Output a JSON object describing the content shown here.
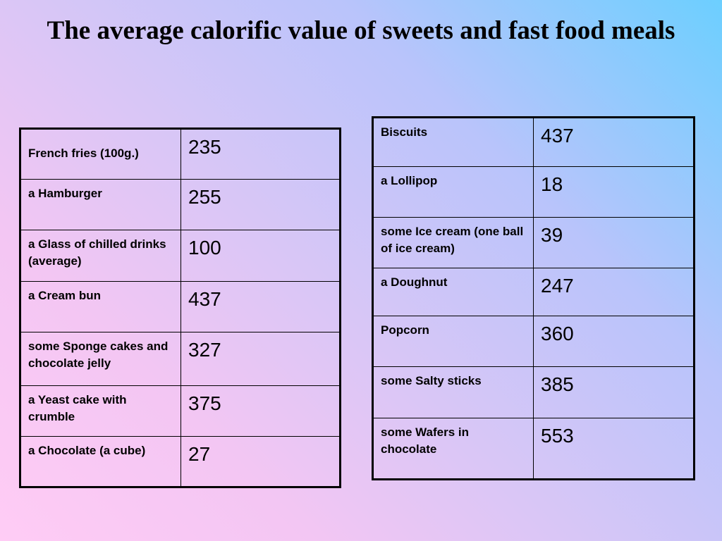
{
  "slide": {
    "title": "The average calorific value of sweets and fast food meals"
  },
  "left_table": {
    "rows": [
      {
        "food": "French fries (100g.)",
        "value": "235"
      },
      {
        "food": "a Hamburger",
        "value": "255"
      },
      {
        "food": "a Glass of chilled drinks (average)",
        "value": "100"
      },
      {
        "food": "a Cream bun",
        "value": "437"
      },
      {
        "food": "some Sponge cakes and chocolate jelly",
        "value": "327"
      },
      {
        "food": "a Yeast cake with crumble",
        "value": "375"
      },
      {
        "food": "a Chocolate (a cube)",
        "value": "27"
      }
    ]
  },
  "right_table": {
    "rows": [
      {
        "food": "Biscuits",
        "value": "437"
      },
      {
        "food": "a Lollipop",
        "value": "18"
      },
      {
        "food": "some Ice cream (one ball of ice cream)",
        "value": "39"
      },
      {
        "food": "a Doughnut",
        "value": "247"
      },
      {
        "food": "Popcorn",
        "value": "360"
      },
      {
        "food": "some Salty sticks",
        "value": "385"
      },
      {
        "food": "some Wafers in chocolate",
        "value": "553"
      }
    ]
  }
}
